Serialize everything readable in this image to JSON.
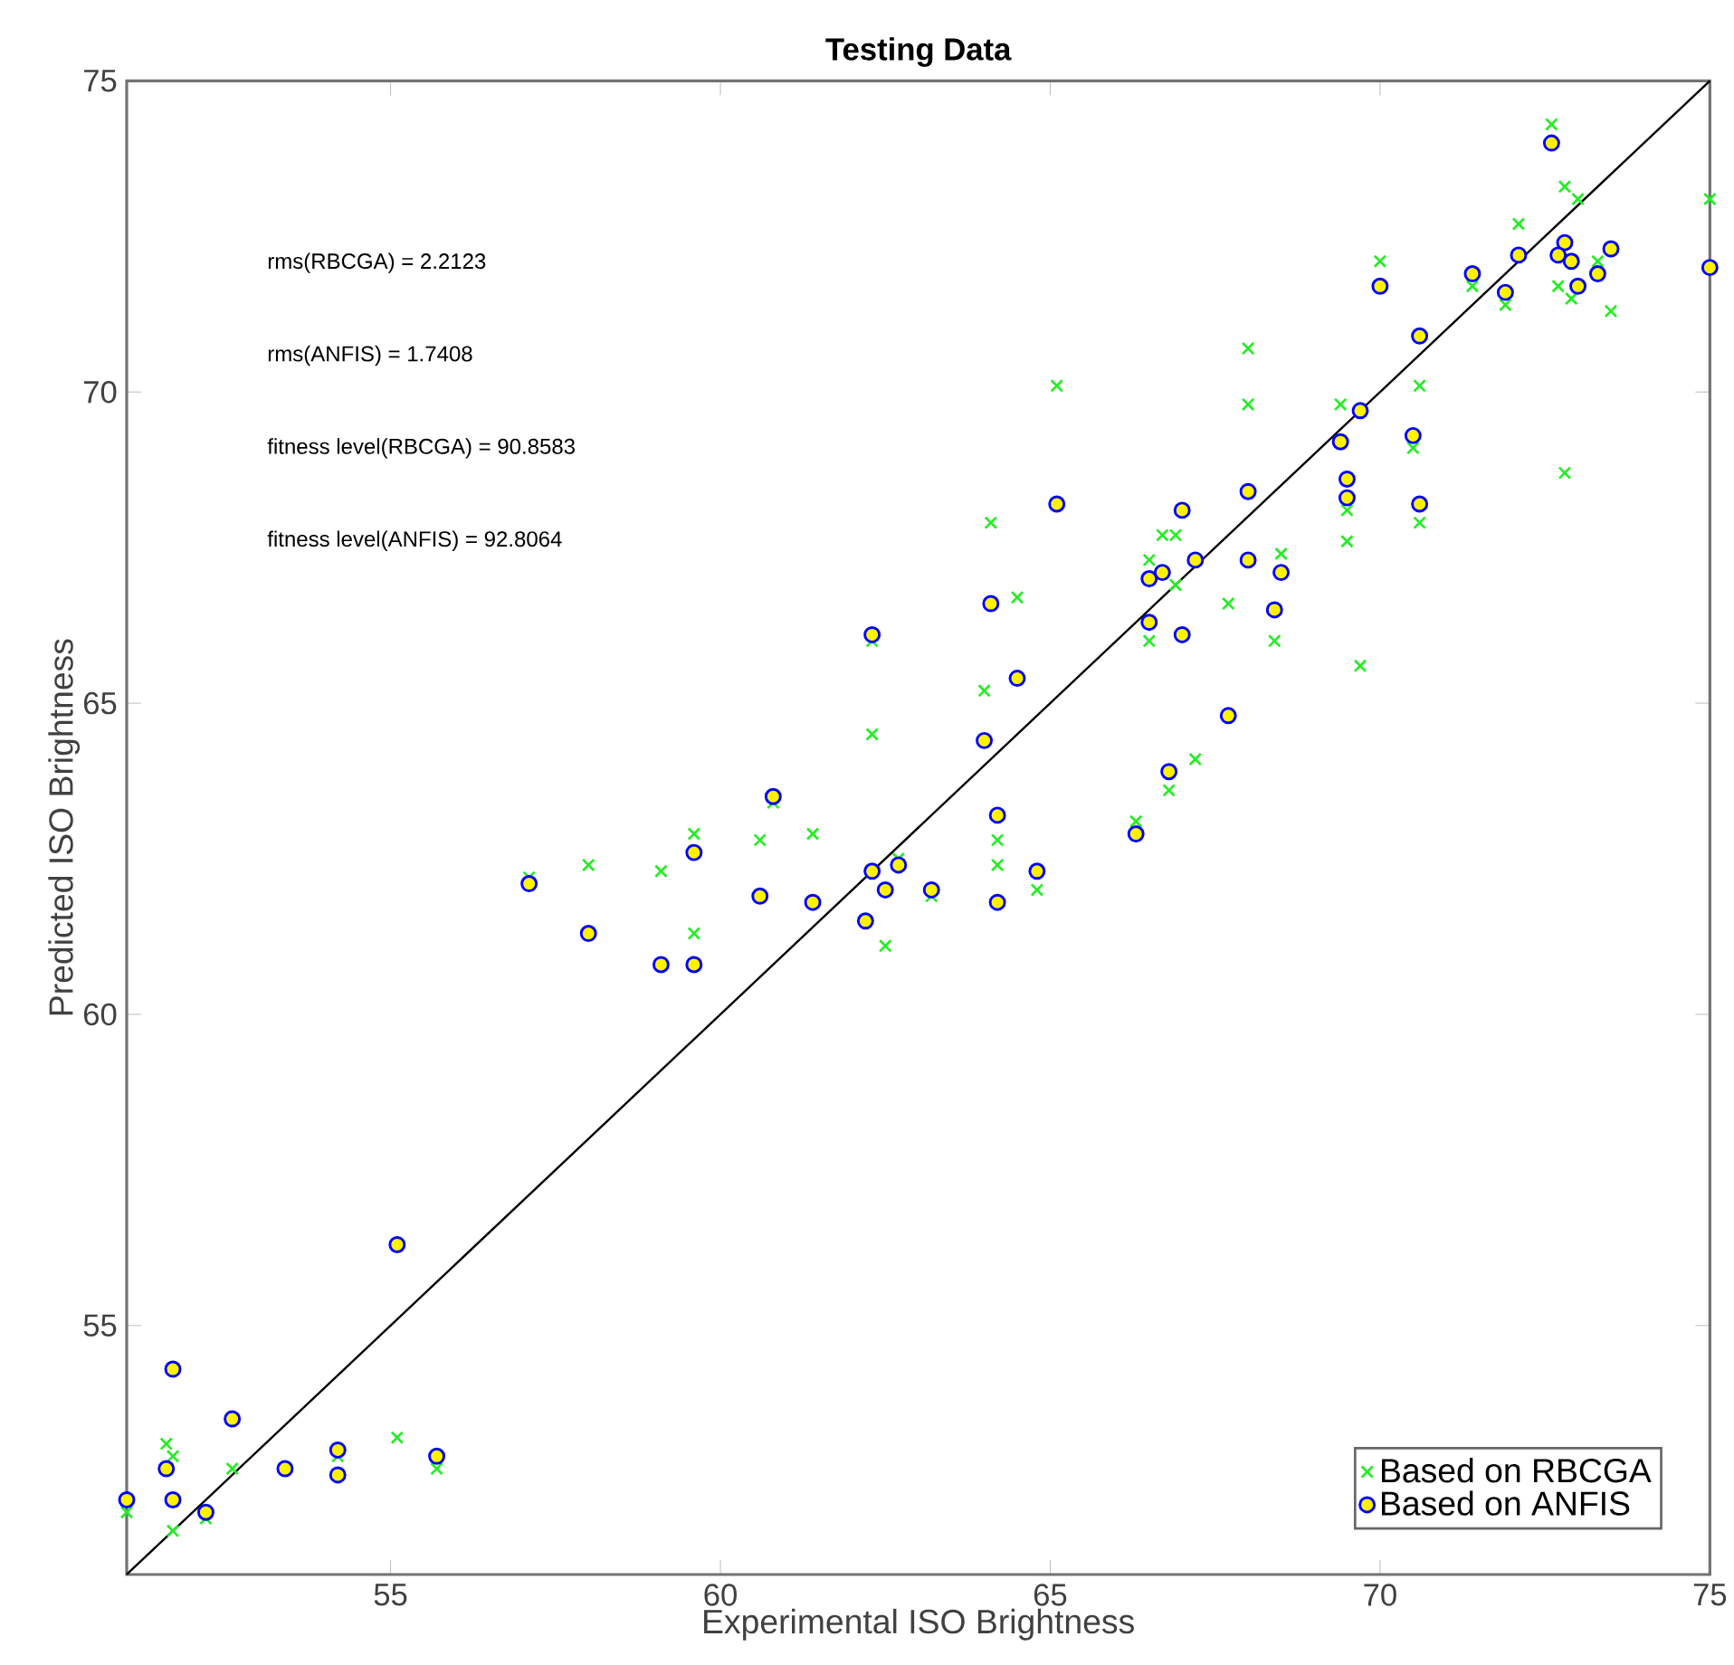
{
  "chart_data": {
    "type": "scatter",
    "title": "Testing Data",
    "xlabel": "Experimental ISO Brightness",
    "ylabel": "Predicted ISO Brightness",
    "xlim": [
      51,
      75
    ],
    "ylim": [
      51,
      75
    ],
    "xticks": [
      55,
      60,
      65,
      70,
      75
    ],
    "yticks": [
      55,
      60,
      65,
      70,
      75
    ],
    "grid": false,
    "legend": "bottom right",
    "annotations": [
      "rms(RBCGA) = 2.2123",
      "rms(ANFIS) = 1.7408",
      "fitness level(RBCGA) = 90.8583",
      "fitness level(ANFIS) = 92.8064"
    ],
    "series": [
      {
        "type": "line",
        "color": "#000000",
        "x": [
          51,
          75
        ],
        "values": [
          51,
          75
        ]
      },
      {
        "name": "Based on RBCGA",
        "color": "#22ee22",
        "marker": "cross",
        "x": [
          51.0,
          51.6,
          51.7,
          51.7,
          52.2,
          52.6,
          54.2,
          55.1,
          55.7,
          57.1,
          58.0,
          59.1,
          59.6,
          59.6,
          60.6,
          60.8,
          61.4,
          62.3,
          62.3,
          62.7,
          62.5,
          63.2,
          64.5,
          64.0,
          64.2,
          64.2,
          64.8,
          72.6,
          72.8,
          73.0,
          72.1,
          75.0,
          73.3,
          72.7,
          72.9,
          73.5,
          71.4,
          71.9,
          70.0,
          68.0,
          68.0,
          65.1,
          70.6,
          69.4,
          70.5,
          72.8,
          69.5,
          70.6,
          69.5,
          68.5,
          64.1,
          66.7,
          66.9,
          66.5,
          66.9,
          67.7,
          68.4,
          69.7,
          66.5,
          67.2,
          66.8,
          66.3
        ],
        "values": [
          52.0,
          53.1,
          52.9,
          51.7,
          51.9,
          52.7,
          52.9,
          53.2,
          52.7,
          62.2,
          62.4,
          62.3,
          62.9,
          61.3,
          62.8,
          63.4,
          62.9,
          66.0,
          64.5,
          62.5,
          61.1,
          61.9,
          66.7,
          65.2,
          62.8,
          62.4,
          62.0,
          74.3,
          73.3,
          73.1,
          72.7,
          73.1,
          72.1,
          71.7,
          71.5,
          71.3,
          71.7,
          71.4,
          72.1,
          70.7,
          69.8,
          70.1,
          70.1,
          69.8,
          69.1,
          68.7,
          68.1,
          67.9,
          67.6,
          67.4,
          67.9,
          67.7,
          67.7,
          67.3,
          66.9,
          66.6,
          66.0,
          65.6,
          66.0,
          64.1,
          63.6,
          63.1
        ]
      },
      {
        "name": "Based on ANFIS",
        "color": "#0000ff",
        "marker": "circle",
        "x": [
          51.0,
          51.6,
          51.7,
          51.7,
          52.2,
          52.6,
          53.4,
          54.2,
          54.2,
          55.1,
          55.7,
          57.1,
          58.0,
          59.1,
          59.6,
          59.6,
          60.6,
          60.8,
          61.4,
          62.3,
          62.3,
          62.7,
          62.5,
          62.2,
          63.2,
          64.1,
          64.5,
          64.0,
          64.2,
          64.2,
          64.8,
          72.6,
          72.8,
          72.7,
          72.9,
          73.5,
          73.3,
          73.0,
          72.1,
          71.4,
          71.9,
          70.0,
          70.6,
          69.7,
          69.4,
          70.5,
          69.5,
          69.5,
          70.6,
          68.0,
          67.0,
          65.1,
          67.2,
          66.7,
          66.5,
          68.0,
          68.5,
          68.4,
          75.0,
          66.5,
          67.0,
          67.7,
          66.8,
          66.3
        ],
        "values": [
          52.2,
          52.7,
          54.3,
          52.2,
          52.0,
          53.5,
          52.7,
          53.0,
          52.6,
          56.3,
          52.9,
          62.1,
          61.3,
          60.8,
          60.8,
          62.6,
          61.9,
          63.5,
          61.8,
          66.1,
          62.3,
          62.4,
          62.0,
          61.5,
          62.0,
          66.6,
          65.4,
          64.4,
          63.2,
          61.8,
          62.3,
          74.0,
          72.4,
          72.2,
          72.1,
          72.3,
          71.9,
          71.7,
          72.2,
          71.9,
          71.6,
          71.7,
          70.9,
          69.7,
          69.2,
          69.3,
          68.6,
          68.3,
          68.2,
          68.4,
          68.1,
          68.2,
          67.3,
          67.1,
          67.0,
          67.3,
          67.1,
          66.5,
          72.0,
          66.3,
          66.1,
          64.8,
          63.9,
          62.9
        ]
      }
    ]
  }
}
